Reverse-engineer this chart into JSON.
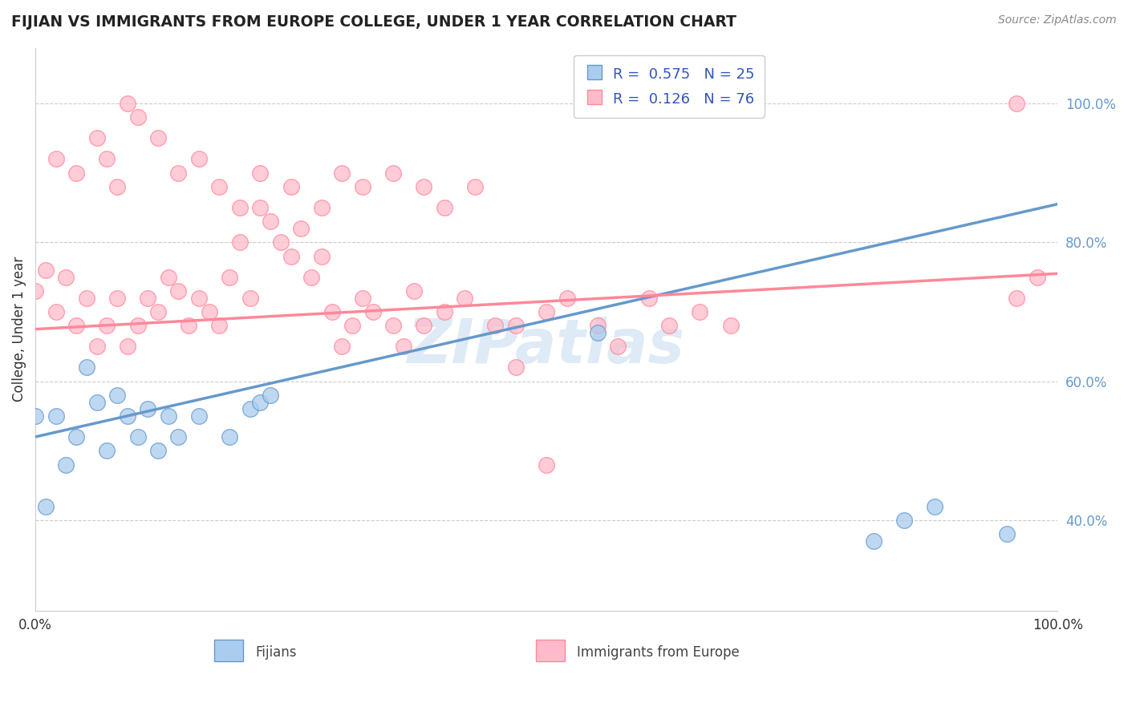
{
  "title": "FIJIAN VS IMMIGRANTS FROM EUROPE COLLEGE, UNDER 1 YEAR CORRELATION CHART",
  "source": "Source: ZipAtlas.com",
  "ylabel": "College, Under 1 year",
  "y_ticks": [
    "40.0%",
    "60.0%",
    "80.0%",
    "100.0%"
  ],
  "y_tick_vals": [
    0.4,
    0.6,
    0.8,
    1.0
  ],
  "xmin": 0.0,
  "xmax": 1.0,
  "ymin": 0.27,
  "ymax": 1.08,
  "blue_color": "#6699CC",
  "pink_color": "#FF8899",
  "blue_fill": "#AACCEE",
  "pink_fill": "#FFBBCC",
  "blue_R": 0.575,
  "blue_N": 25,
  "pink_R": 0.126,
  "pink_N": 76,
  "watermark": "ZIPatlas",
  "watermark_color": "#AACCEE",
  "legend_label_blue": "Fijians",
  "legend_label_pink": "Immigrants from Europe",
  "blue_line_x0": 0.0,
  "blue_line_y0": 0.52,
  "blue_line_x1": 1.0,
  "blue_line_y1": 0.855,
  "pink_line_x0": 0.0,
  "pink_line_y0": 0.675,
  "pink_line_x1": 1.0,
  "pink_line_y1": 0.755,
  "blue_scatter_x": [
    0.0,
    0.01,
    0.02,
    0.03,
    0.04,
    0.05,
    0.06,
    0.07,
    0.08,
    0.09,
    0.1,
    0.11,
    0.12,
    0.13,
    0.14,
    0.16,
    0.19,
    0.21,
    0.22,
    0.23,
    0.55,
    0.82,
    0.85,
    0.88,
    0.95
  ],
  "blue_scatter_y": [
    0.55,
    0.42,
    0.55,
    0.48,
    0.52,
    0.62,
    0.57,
    0.5,
    0.58,
    0.55,
    0.52,
    0.56,
    0.5,
    0.55,
    0.52,
    0.55,
    0.52,
    0.56,
    0.57,
    0.58,
    0.67,
    0.37,
    0.4,
    0.42,
    0.38
  ],
  "pink_scatter_x": [
    0.0,
    0.01,
    0.02,
    0.03,
    0.04,
    0.05,
    0.06,
    0.07,
    0.08,
    0.09,
    0.1,
    0.11,
    0.12,
    0.13,
    0.14,
    0.15,
    0.16,
    0.17,
    0.18,
    0.19,
    0.2,
    0.21,
    0.22,
    0.23,
    0.24,
    0.25,
    0.26,
    0.27,
    0.28,
    0.29,
    0.3,
    0.31,
    0.32,
    0.33,
    0.35,
    0.36,
    0.37,
    0.38,
    0.4,
    0.42,
    0.45,
    0.47,
    0.5,
    0.52,
    0.55,
    0.57,
    0.6,
    0.62,
    0.65,
    0.68,
    0.02,
    0.04,
    0.06,
    0.07,
    0.08,
    0.09,
    0.1,
    0.12,
    0.14,
    0.16,
    0.18,
    0.2,
    0.22,
    0.25,
    0.28,
    0.3,
    0.32,
    0.35,
    0.38,
    0.4,
    0.43,
    0.47,
    0.5,
    0.96,
    0.96,
    0.98
  ],
  "pink_scatter_y": [
    0.73,
    0.76,
    0.7,
    0.75,
    0.68,
    0.72,
    0.65,
    0.68,
    0.72,
    0.65,
    0.68,
    0.72,
    0.7,
    0.75,
    0.73,
    0.68,
    0.72,
    0.7,
    0.68,
    0.75,
    0.8,
    0.72,
    0.85,
    0.83,
    0.8,
    0.78,
    0.82,
    0.75,
    0.78,
    0.7,
    0.65,
    0.68,
    0.72,
    0.7,
    0.68,
    0.65,
    0.73,
    0.68,
    0.7,
    0.72,
    0.68,
    0.68,
    0.7,
    0.72,
    0.68,
    0.65,
    0.72,
    0.68,
    0.7,
    0.68,
    0.92,
    0.9,
    0.95,
    0.92,
    0.88,
    1.0,
    0.98,
    0.95,
    0.9,
    0.92,
    0.88,
    0.85,
    0.9,
    0.88,
    0.85,
    0.9,
    0.88,
    0.9,
    0.88,
    0.85,
    0.88,
    0.62,
    0.48,
    1.0,
    0.72,
    0.75
  ]
}
